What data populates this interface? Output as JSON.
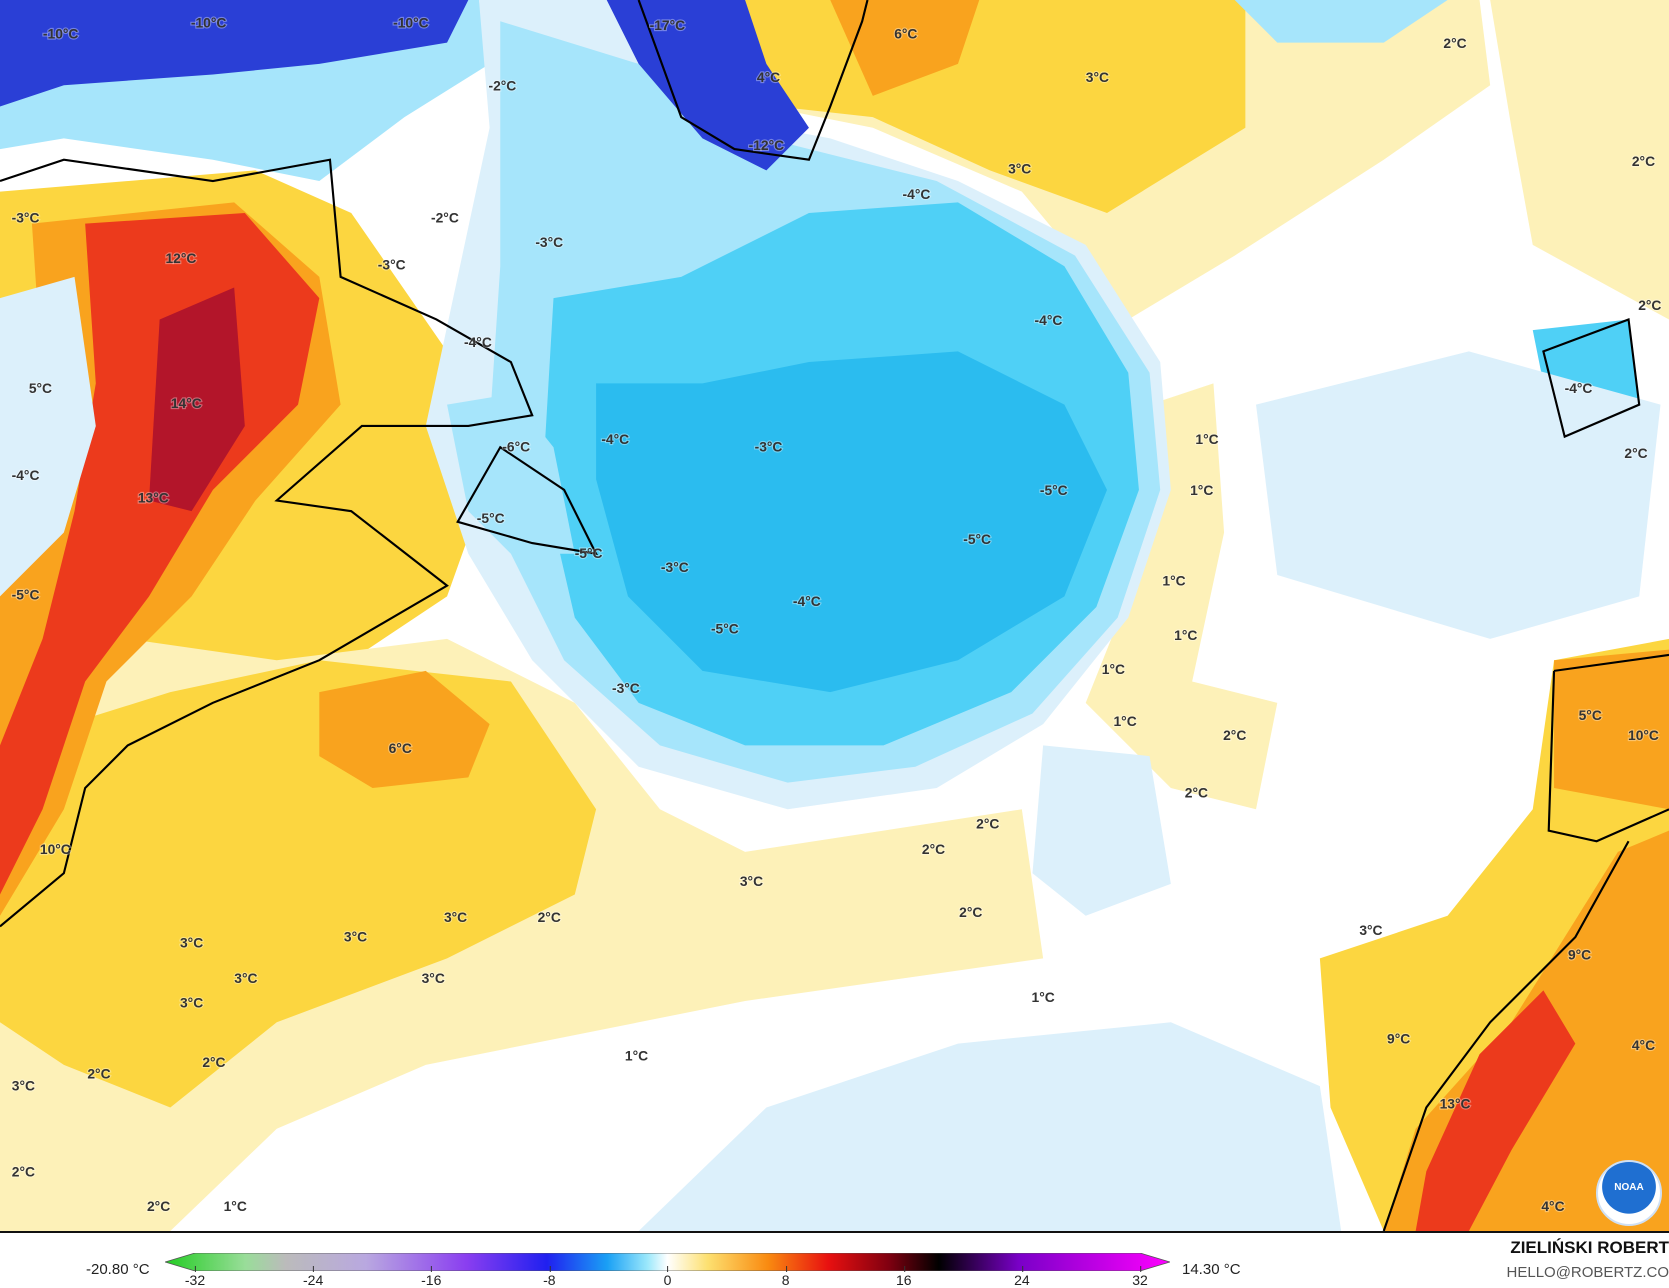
{
  "map": {
    "variable_unit": "°C",
    "labels": [
      "-10°C",
      "-10°C",
      "-10°C",
      "-17°C",
      "6°C",
      "2°C",
      "4°C",
      "3°C",
      "-2°C",
      "-12°C",
      "3°C",
      "2°C",
      "-4°C",
      "-3°C",
      "-2°C",
      "-3°C",
      "12°C",
      "-3°C",
      "2°C",
      "-4°C",
      "-4°C",
      "5°C",
      "14°C",
      "-4°C",
      "1°C",
      "-4°C",
      "-3°C",
      "-6°C",
      "-4°C",
      "2°C",
      "1°C",
      "-5°C",
      "13°C",
      "-5°C",
      "-5°C",
      "-5°C",
      "-3°C",
      "1°C",
      "-5°C",
      "-4°C",
      "-5°C",
      "1°C",
      "1°C",
      "-3°C",
      "5°C",
      "1°C",
      "10°C",
      "2°C",
      "6°C",
      "2°C",
      "2°C",
      "2°C",
      "10°C",
      "3°C",
      "2°C",
      "3°C",
      "2°C",
      "3°C",
      "3°C",
      "3°C",
      "9°C",
      "3°C",
      "3°C",
      "1°C",
      "3°C",
      "9°C",
      "4°C",
      "1°C",
      "2°C",
      "2°C",
      "3°C",
      "13°C",
      "1°C",
      "2°C",
      "4°C",
      "2°C"
    ],
    "colors": {
      "white": "#ffffff",
      "pale_yellow": "#fdf1b8",
      "yellow": "#fcd640",
      "orange": "#f9a31e",
      "red": "#ec3a1c",
      "dark_red": "#b3152a",
      "pale_blue": "#dcf0fb",
      "light_blue": "#a6e5fb",
      "cyan": "#4fd0f6",
      "deep_cyan": "#2bbcef",
      "blue": "#2a3fd6"
    }
  },
  "colorbar": {
    "ticks": [
      "-32",
      "-24",
      "-16",
      "-8",
      "0",
      "8",
      "16",
      "24",
      "32"
    ],
    "min_label": "-20.80 °C",
    "max_label": "14.30 °C"
  },
  "credit": {
    "name": "ZIELIŃSKI ROBERT",
    "email": "HELLO@ROBERTZ.CO"
  },
  "logo": {
    "text": "NOAA"
  }
}
